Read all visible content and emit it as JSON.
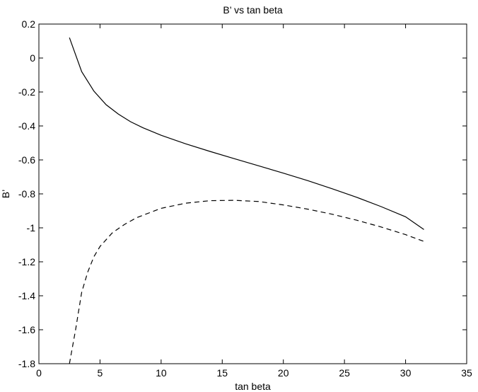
{
  "chart_data": {
    "type": "line",
    "title": "B’ vs tan beta",
    "xlabel": "tan beta",
    "ylabel": "B’",
    "xlim": [
      0,
      35
    ],
    "ylim": [
      -1.8,
      0.2
    ],
    "xticks": [
      0,
      5,
      10,
      15,
      20,
      25,
      30,
      35
    ],
    "xtick_labels": [
      "0",
      "5",
      "10",
      "15",
      "20",
      "25",
      "30",
      "35"
    ],
    "yticks": [
      0.2,
      0,
      -0.2,
      -0.4,
      -0.6,
      -0.8,
      -1,
      -1.2,
      -1.4,
      -1.6,
      -1.8
    ],
    "ytick_labels": [
      "0.2",
      "0",
      "-0.2",
      "-0.4",
      "-0.6",
      "-0.8",
      "-1",
      "-1.2",
      "-1.4",
      "-1.6",
      "-1.8"
    ],
    "grid": false,
    "series": [
      {
        "style": "solid",
        "color": "#000000",
        "x": [
          2.5,
          3.5,
          4.5,
          5.5,
          6.5,
          7.5,
          8.5,
          10,
          12,
          14,
          16,
          18,
          20,
          22,
          24,
          26,
          28,
          30,
          31.5
        ],
        "y": [
          0.12,
          -0.08,
          -0.195,
          -0.275,
          -0.33,
          -0.375,
          -0.41,
          -0.455,
          -0.505,
          -0.55,
          -0.593,
          -0.635,
          -0.678,
          -0.722,
          -0.77,
          -0.82,
          -0.875,
          -0.935,
          -1.01
        ]
      },
      {
        "style": "dashed",
        "color": "#000000",
        "x": [
          2.5,
          3,
          3.5,
          4,
          4.5,
          5,
          6,
          7,
          8,
          10,
          12,
          14,
          16,
          18,
          20,
          22,
          24,
          26,
          28,
          30,
          31.5
        ],
        "y": [
          -1.8,
          -1.6,
          -1.38,
          -1.26,
          -1.17,
          -1.11,
          -1.03,
          -0.98,
          -0.94,
          -0.885,
          -0.855,
          -0.84,
          -0.838,
          -0.845,
          -0.865,
          -0.89,
          -0.92,
          -0.955,
          -0.995,
          -1.04,
          -1.08
        ]
      }
    ]
  }
}
